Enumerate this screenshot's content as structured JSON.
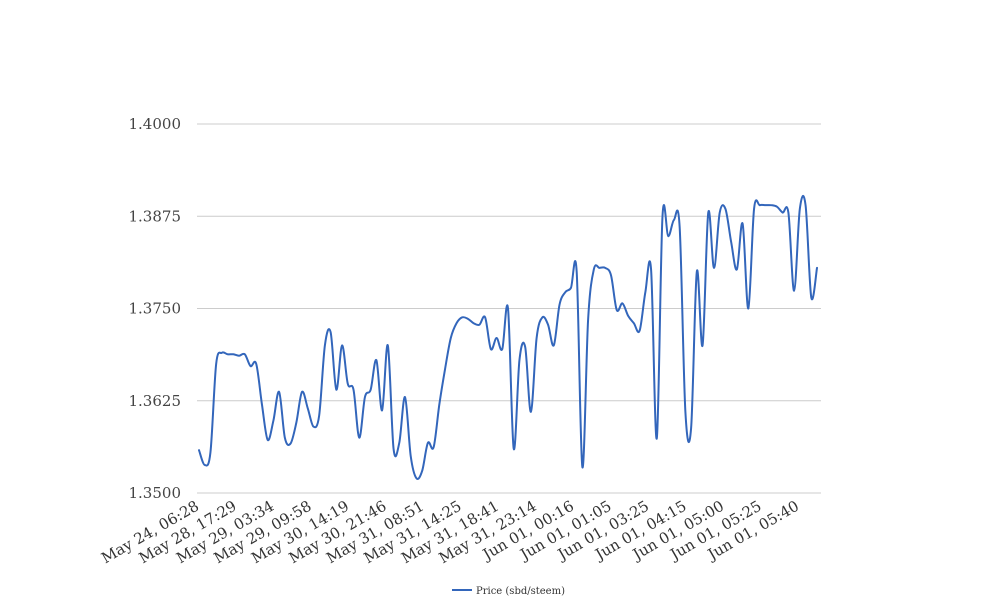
{
  "chart_data": {
    "type": "line",
    "title": "",
    "xlabel": "",
    "ylabel": "",
    "ylim": [
      1.35,
      1.4
    ],
    "y_ticks": [
      "1.3500",
      "1.3625",
      "1.3750",
      "1.3875",
      "1.4000"
    ],
    "x_tick_labels": [
      "May 24, 06:28",
      "May 28, 17:29",
      "May 29, 03:34",
      "May 29, 09:58",
      "May 30, 14:19",
      "May 30, 21:46",
      "May 31, 08:51",
      "May 31, 14:25",
      "May 31, 18:41",
      "May 31, 23:14",
      "Jun 01, 00:16",
      "Jun 01, 01:05",
      "Jun 01, 03:25",
      "Jun 01, 04:15",
      "Jun 01, 05:00",
      "Jun 01, 05:25",
      "Jun 01, 05:40"
    ],
    "grid": true,
    "legend_position": "bottom-center",
    "line_color": "#3366bb",
    "series": [
      {
        "name": "Price (sbd/steem)",
        "values": [
          1.3558,
          1.3538,
          1.3555,
          1.3675,
          1.369,
          1.3688,
          1.3688,
          1.3686,
          1.3688,
          1.3672,
          1.3675,
          1.362,
          1.3572,
          1.3598,
          1.3637,
          1.3575,
          1.3567,
          1.3595,
          1.3637,
          1.3615,
          1.359,
          1.3605,
          1.37,
          1.3718,
          1.364,
          1.37,
          1.3648,
          1.364,
          1.3575,
          1.363,
          1.364,
          1.368,
          1.3612,
          1.37,
          1.356,
          1.3568,
          1.363,
          1.355,
          1.352,
          1.353,
          1.3568,
          1.3562,
          1.362,
          1.3668,
          1.371,
          1.373,
          1.3738,
          1.3736,
          1.373,
          1.3728,
          1.3738,
          1.3695,
          1.371,
          1.3695,
          1.375,
          1.356,
          1.368,
          1.3698,
          1.361,
          1.371,
          1.3738,
          1.3728,
          1.37,
          1.3755,
          1.3772,
          1.3778,
          1.38,
          1.3535,
          1.3735,
          1.3803,
          1.3805,
          1.3805,
          1.3795,
          1.3748,
          1.3757,
          1.374,
          1.373,
          1.372,
          1.3772,
          1.3803,
          1.3574,
          1.3875,
          1.3848,
          1.387,
          1.386,
          1.361,
          1.3588,
          1.38,
          1.37,
          1.388,
          1.3805,
          1.388,
          1.3885,
          1.384,
          1.3803,
          1.3865,
          1.375,
          1.3885,
          1.389,
          1.389,
          1.389,
          1.3888,
          1.388,
          1.388,
          1.3774,
          1.3885,
          1.389,
          1.3765,
          1.3805
        ]
      }
    ]
  }
}
